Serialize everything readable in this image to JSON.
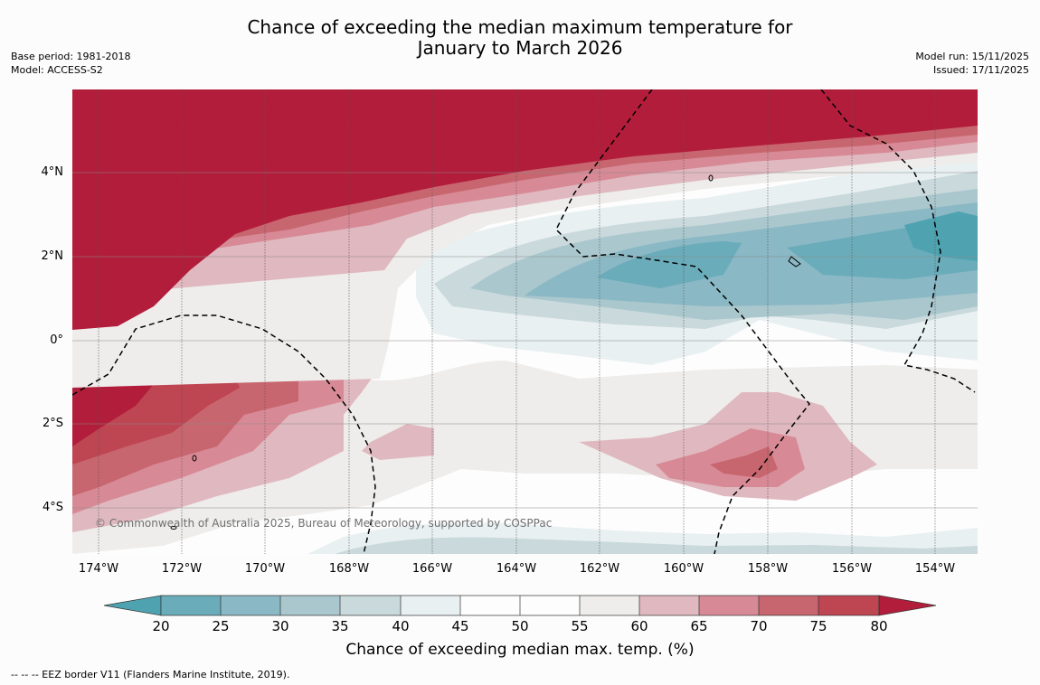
{
  "title": {
    "line1": "Chance of exceeding the median maximum temperature for",
    "line2": "January to March 2026"
  },
  "meta": {
    "base_period": "Base period: 1981-2018",
    "model": "Model: ACCESS-S2",
    "model_run": "Model run: 15/11/2025",
    "issued": "Issued: 17/11/2025"
  },
  "map": {
    "lat_labels": [
      "4°N",
      "2°N",
      "0°",
      "2°S",
      "4°S"
    ],
    "lon_labels": [
      "174°W",
      "172°W",
      "170°W",
      "168°W",
      "166°W",
      "164°W",
      "162°W",
      "160°W",
      "158°W",
      "156°W",
      "154°W"
    ],
    "copyright": "© Commonwealth of Australia 2025, Bureau of Meteorology, supported by COSPPac"
  },
  "colorbar": {
    "ticks": [
      "20",
      "25",
      "30",
      "35",
      "40",
      "45",
      "50",
      "55",
      "60",
      "65",
      "70",
      "75",
      "80"
    ],
    "label": "Chance of exceeding median max. temp. (%)",
    "colors": {
      "below20": "#4fa3b1",
      "c20_25": "#6aacba",
      "c25_30": "#8ab8c5",
      "c30_35": "#a9c7cd",
      "c35_40": "#c9d9dc",
      "c40_45": "#e9f0f2",
      "c45_50": "#fdfdfd",
      "c50_55": "#fdfdfd",
      "c55_60": "#eeedeb",
      "c60_65": "#e0b8bf",
      "c65_70": "#d78a96",
      "c70_75": "#c8666f",
      "c75_80": "#be4552",
      "above80": "#b21d3b"
    }
  },
  "footnote": "--  --  -- EEZ border V11 (Flanders Marine Institute, 2019)."
}
